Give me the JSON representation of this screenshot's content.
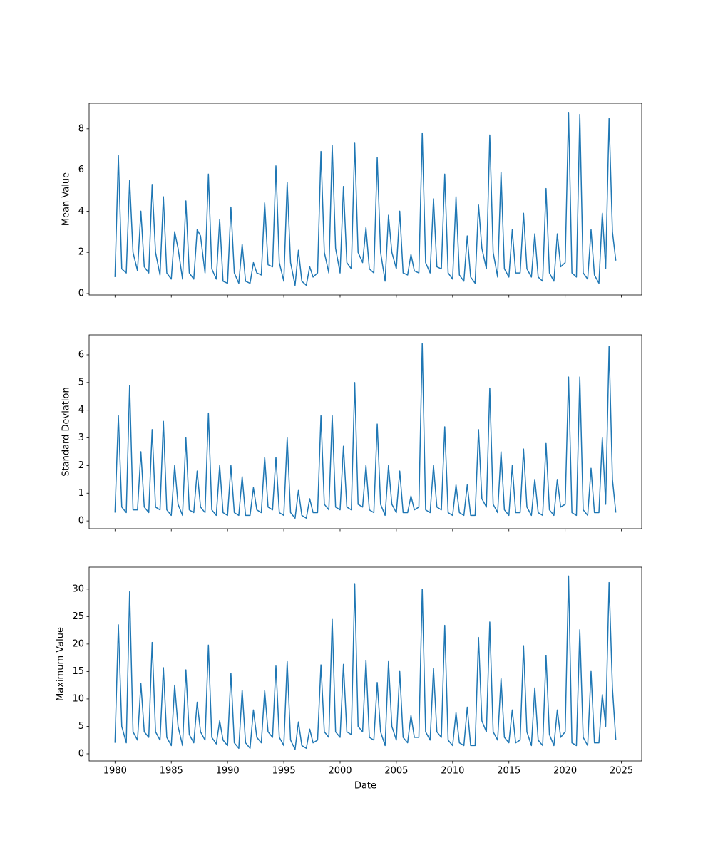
{
  "chart_data": [
    {
      "type": "line",
      "ylabel": "Mean Value",
      "x": [
        1980,
        1980.3,
        1980.6,
        1981,
        1981.3,
        1981.6,
        1982,
        1982.3,
        1982.6,
        1983,
        1983.3,
        1983.6,
        1984,
        1984.3,
        1984.6,
        1985,
        1985.3,
        1985.6,
        1986,
        1986.3,
        1986.6,
        1987,
        1987.3,
        1987.6,
        1988,
        1988.3,
        1988.6,
        1989,
        1989.3,
        1989.6,
        1990,
        1990.3,
        1990.6,
        1991,
        1991.3,
        1991.6,
        1992,
        1992.3,
        1992.6,
        1993,
        1993.3,
        1993.6,
        1994,
        1994.3,
        1994.6,
        1995,
        1995.3,
        1995.6,
        1996,
        1996.3,
        1996.6,
        1997,
        1997.3,
        1997.6,
        1998,
        1998.3,
        1998.6,
        1999,
        1999.3,
        1999.6,
        2000,
        2000.3,
        2000.6,
        2001,
        2001.3,
        2001.6,
        2002,
        2002.3,
        2002.6,
        2003,
        2003.3,
        2003.6,
        2004,
        2004.3,
        2004.6,
        2005,
        2005.3,
        2005.6,
        2006,
        2006.3,
        2006.6,
        2007,
        2007.3,
        2007.6,
        2008,
        2008.3,
        2008.6,
        2009,
        2009.3,
        2009.6,
        2010,
        2010.3,
        2010.6,
        2011,
        2011.3,
        2011.6,
        2012,
        2012.3,
        2012.6,
        2013,
        2013.3,
        2013.6,
        2014,
        2014.3,
        2014.6,
        2015,
        2015.3,
        2015.6,
        2016,
        2016.3,
        2016.6,
        2017,
        2017.3,
        2017.6,
        2018,
        2018.3,
        2018.6,
        2019,
        2019.3,
        2019.6,
        2020,
        2020.3,
        2020.6,
        2021,
        2021.3,
        2021.6,
        2022,
        2022.3,
        2022.6,
        2023,
        2023.3,
        2023.6,
        2023.9,
        2024.2,
        2024.5
      ],
      "series": [
        {
          "color": "#1f77b4",
          "values": [
            0.8,
            6.7,
            1.2,
            1.0,
            5.5,
            2.0,
            1.1,
            4.0,
            1.3,
            1.0,
            5.3,
            2.0,
            0.9,
            4.7,
            1.0,
            0.7,
            3.0,
            2.2,
            0.7,
            4.5,
            1.0,
            0.7,
            3.1,
            2.8,
            1.0,
            5.8,
            1.2,
            0.7,
            3.6,
            0.6,
            0.5,
            4.2,
            1.0,
            0.5,
            2.4,
            0.6,
            0.5,
            1.5,
            1.0,
            0.9,
            4.4,
            1.4,
            1.3,
            6.2,
            1.5,
            0.6,
            5.4,
            1.5,
            0.4,
            2.1,
            0.6,
            0.4,
            1.3,
            0.8,
            1.0,
            6.9,
            2.0,
            1.0,
            7.2,
            2.2,
            1.0,
            5.2,
            1.5,
            1.2,
            7.3,
            2.0,
            1.5,
            3.2,
            1.2,
            1.0,
            6.6,
            2.0,
            0.6,
            3.8,
            2.0,
            1.2,
            4.0,
            1.0,
            0.9,
            1.9,
            1.1,
            1.0,
            7.8,
            1.5,
            1.0,
            4.6,
            1.3,
            1.2,
            5.8,
            1.0,
            0.7,
            4.7,
            0.9,
            0.6,
            2.8,
            0.8,
            0.5,
            4.3,
            2.2,
            1.2,
            7.7,
            2.0,
            0.8,
            5.9,
            1.2,
            0.8,
            3.1,
            1.0,
            1.0,
            3.9,
            1.2,
            0.8,
            2.9,
            0.8,
            0.6,
            5.1,
            1.0,
            0.6,
            2.9,
            1.3,
            1.5,
            8.8,
            1.0,
            0.8,
            8.7,
            1.0,
            0.7,
            3.1,
            0.9,
            0.5,
            3.9,
            1.2,
            8.5,
            3.0,
            1.6
          ]
        }
      ],
      "xlim": [
        1977.7,
        2026.8
      ],
      "xticks": [
        1980,
        1985,
        1990,
        1995,
        2000,
        2005,
        2010,
        2015,
        2020,
        2025
      ],
      "ylim": [
        -0.07,
        9.24
      ],
      "yticks": [
        0,
        2,
        4,
        6,
        8
      ]
    },
    {
      "type": "line",
      "ylabel": "Standard Deviation",
      "x": [
        1980,
        1980.3,
        1980.6,
        1981,
        1981.3,
        1981.6,
        1982,
        1982.3,
        1982.6,
        1983,
        1983.3,
        1983.6,
        1984,
        1984.3,
        1984.6,
        1985,
        1985.3,
        1985.6,
        1986,
        1986.3,
        1986.6,
        1987,
        1987.3,
        1987.6,
        1988,
        1988.3,
        1988.6,
        1989,
        1989.3,
        1989.6,
        1990,
        1990.3,
        1990.6,
        1991,
        1991.3,
        1991.6,
        1992,
        1992.3,
        1992.6,
        1993,
        1993.3,
        1993.6,
        1994,
        1994.3,
        1994.6,
        1995,
        1995.3,
        1995.6,
        1996,
        1996.3,
        1996.6,
        1997,
        1997.3,
        1997.6,
        1998,
        1998.3,
        1998.6,
        1999,
        1999.3,
        1999.6,
        2000,
        2000.3,
        2000.6,
        2001,
        2001.3,
        2001.6,
        2002,
        2002.3,
        2002.6,
        2003,
        2003.3,
        2003.6,
        2004,
        2004.3,
        2004.6,
        2005,
        2005.3,
        2005.6,
        2006,
        2006.3,
        2006.6,
        2007,
        2007.3,
        2007.6,
        2008,
        2008.3,
        2008.6,
        2009,
        2009.3,
        2009.6,
        2010,
        2010.3,
        2010.6,
        2011,
        2011.3,
        2011.6,
        2012,
        2012.3,
        2012.6,
        2013,
        2013.3,
        2013.6,
        2014,
        2014.3,
        2014.6,
        2015,
        2015.3,
        2015.6,
        2016,
        2016.3,
        2016.6,
        2017,
        2017.3,
        2017.6,
        2018,
        2018.3,
        2018.6,
        2019,
        2019.3,
        2019.6,
        2020,
        2020.3,
        2020.6,
        2021,
        2021.3,
        2021.6,
        2022,
        2022.3,
        2022.6,
        2023,
        2023.3,
        2023.6,
        2023.9,
        2024.2,
        2024.5
      ],
      "series": [
        {
          "color": "#1f77b4",
          "values": [
            0.3,
            3.8,
            0.5,
            0.3,
            4.9,
            0.4,
            0.4,
            2.5,
            0.5,
            0.3,
            3.3,
            0.5,
            0.4,
            3.6,
            0.4,
            0.2,
            2.0,
            0.6,
            0.2,
            3.0,
            0.4,
            0.3,
            1.8,
            0.5,
            0.3,
            3.9,
            0.4,
            0.2,
            2.0,
            0.3,
            0.2,
            2.0,
            0.3,
            0.2,
            1.6,
            0.2,
            0.2,
            1.2,
            0.4,
            0.3,
            2.3,
            0.5,
            0.4,
            2.3,
            0.3,
            0.2,
            3.0,
            0.3,
            0.1,
            1.1,
            0.2,
            0.1,
            0.8,
            0.3,
            0.3,
            3.8,
            0.6,
            0.4,
            3.8,
            0.5,
            0.4,
            2.7,
            0.5,
            0.4,
            5.0,
            0.6,
            0.5,
            2.0,
            0.4,
            0.3,
            3.5,
            0.6,
            0.2,
            2.0,
            0.6,
            0.3,
            1.8,
            0.3,
            0.3,
            0.9,
            0.4,
            0.5,
            6.4,
            0.4,
            0.3,
            2.0,
            0.5,
            0.4,
            3.4,
            0.3,
            0.2,
            1.3,
            0.3,
            0.2,
            1.3,
            0.2,
            0.2,
            3.3,
            0.8,
            0.5,
            4.8,
            0.6,
            0.3,
            2.5,
            0.4,
            0.2,
            2.0,
            0.3,
            0.3,
            2.6,
            0.5,
            0.2,
            1.5,
            0.3,
            0.2,
            2.8,
            0.4,
            0.2,
            1.5,
            0.5,
            0.6,
            5.2,
            0.3,
            0.2,
            5.2,
            0.4,
            0.2,
            1.9,
            0.3,
            0.3,
            3.0,
            0.6,
            6.3,
            1.5,
            0.3
          ]
        }
      ],
      "xlim": [
        1977.7,
        2026.8
      ],
      "xticks": [
        1980,
        1985,
        1990,
        1995,
        2000,
        2005,
        2010,
        2015,
        2020,
        2025
      ],
      "ylim": [
        -0.28,
        6.72
      ],
      "yticks": [
        0,
        1,
        2,
        3,
        4,
        5,
        6
      ]
    },
    {
      "type": "line",
      "ylabel": "Maximum Value",
      "xlabel": "Date",
      "x": [
        1980,
        1980.3,
        1980.6,
        1981,
        1981.3,
        1981.6,
        1982,
        1982.3,
        1982.6,
        1983,
        1983.3,
        1983.6,
        1984,
        1984.3,
        1984.6,
        1985,
        1985.3,
        1985.6,
        1986,
        1986.3,
        1986.6,
        1987,
        1987.3,
        1987.6,
        1988,
        1988.3,
        1988.6,
        1989,
        1989.3,
        1989.6,
        1990,
        1990.3,
        1990.6,
        1991,
        1991.3,
        1991.6,
        1992,
        1992.3,
        1992.6,
        1993,
        1993.3,
        1993.6,
        1994,
        1994.3,
        1994.6,
        1995,
        1995.3,
        1995.6,
        1996,
        1996.3,
        1996.6,
        1997,
        1997.3,
        1997.6,
        1998,
        1998.3,
        1998.6,
        1999,
        1999.3,
        1999.6,
        2000,
        2000.3,
        2000.6,
        2001,
        2001.3,
        2001.6,
        2002,
        2002.3,
        2002.6,
        2003,
        2003.3,
        2003.6,
        2004,
        2004.3,
        2004.6,
        2005,
        2005.3,
        2005.6,
        2006,
        2006.3,
        2006.6,
        2007,
        2007.3,
        2007.6,
        2008,
        2008.3,
        2008.6,
        2009,
        2009.3,
        2009.6,
        2010,
        2010.3,
        2010.6,
        2011,
        2011.3,
        2011.6,
        2012,
        2012.3,
        2012.6,
        2013,
        2013.3,
        2013.6,
        2014,
        2014.3,
        2014.6,
        2015,
        2015.3,
        2015.6,
        2016,
        2016.3,
        2016.6,
        2017,
        2017.3,
        2017.6,
        2018,
        2018.3,
        2018.6,
        2019,
        2019.3,
        2019.6,
        2020,
        2020.3,
        2020.6,
        2021,
        2021.3,
        2021.6,
        2022,
        2022.3,
        2022.6,
        2023,
        2023.3,
        2023.6,
        2023.9,
        2024.2,
        2024.5
      ],
      "series": [
        {
          "color": "#1f77b4",
          "values": [
            2.0,
            23.5,
            5.0,
            2.0,
            29.5,
            4.0,
            2.5,
            12.8,
            4.0,
            3.0,
            20.3,
            4.0,
            2.5,
            15.7,
            3.0,
            1.5,
            12.5,
            5.0,
            1.5,
            15.3,
            3.5,
            2.0,
            9.4,
            4.0,
            2.5,
            19.8,
            3.0,
            1.8,
            6.0,
            2.5,
            1.5,
            14.7,
            2.0,
            1.0,
            11.6,
            2.0,
            1.0,
            8.0,
            3.0,
            2.0,
            11.5,
            4.0,
            3.0,
            16.0,
            3.0,
            1.5,
            16.8,
            2.5,
            0.8,
            5.8,
            1.5,
            1.0,
            4.5,
            2.0,
            2.5,
            16.2,
            4.0,
            3.0,
            24.5,
            4.0,
            3.0,
            16.3,
            4.0,
            3.5,
            31.0,
            5.0,
            4.0,
            17.0,
            3.0,
            2.5,
            13.0,
            4.0,
            1.5,
            16.8,
            5.0,
            2.5,
            15.0,
            3.0,
            2.0,
            7.0,
            3.0,
            3.0,
            30.0,
            4.0,
            2.5,
            15.5,
            4.0,
            3.0,
            23.4,
            2.5,
            1.5,
            7.5,
            2.0,
            1.5,
            8.5,
            1.5,
            1.5,
            21.2,
            6.0,
            4.0,
            24.0,
            4.0,
            2.5,
            13.7,
            3.0,
            2.0,
            8.0,
            2.0,
            2.5,
            19.7,
            4.0,
            1.5,
            12.0,
            2.5,
            1.5,
            17.9,
            3.5,
            1.5,
            8.0,
            3.0,
            4.0,
            32.4,
            2.0,
            1.5,
            22.6,
            3.0,
            1.5,
            15.0,
            2.0,
            2.0,
            10.8,
            5.0,
            31.2,
            12.0,
            2.5
          ]
        }
      ],
      "xlim": [
        1977.7,
        2026.8
      ],
      "xticks": [
        1980,
        1985,
        1990,
        1995,
        2000,
        2005,
        2010,
        2015,
        2020,
        2025
      ],
      "ylim": [
        -1.3,
        34.0
      ],
      "yticks": [
        0,
        5,
        10,
        15,
        20,
        25,
        30
      ]
    }
  ]
}
